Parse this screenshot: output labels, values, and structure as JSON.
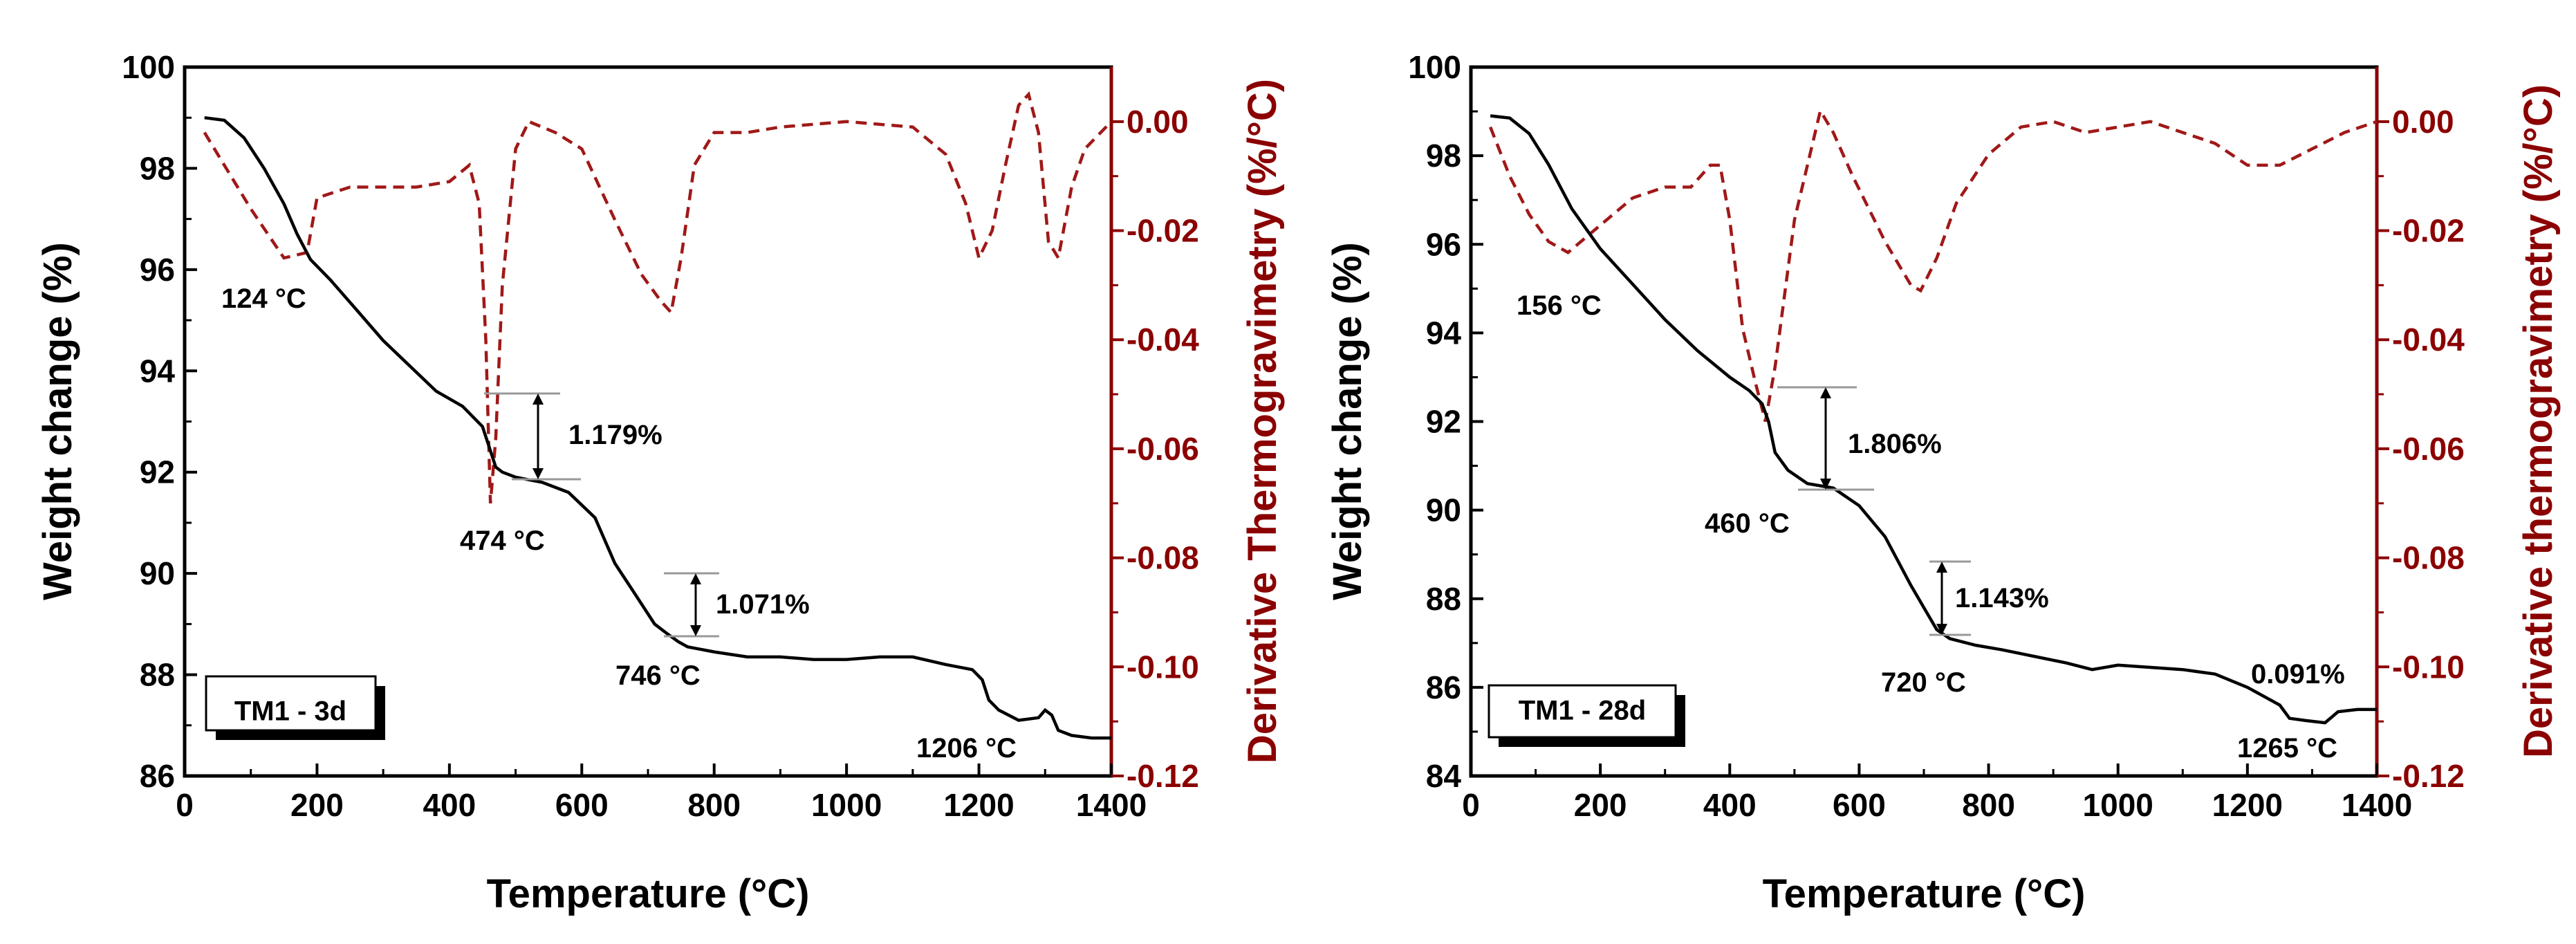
{
  "chart_data": [
    {
      "type": "line",
      "label": "TM1 - 3d",
      "xlabel": "Temperature (°C)",
      "ylabel": "Weight change (%)",
      "y2label": "Derivative Thermogravimetry (%/°C)",
      "xlim": [
        0,
        1400
      ],
      "ylim": [
        86,
        100
      ],
      "y2lim": [
        -0.12,
        0.01
      ],
      "xticks": [
        "0",
        "200",
        "400",
        "600",
        "800",
        "1000",
        "1200",
        "1400"
      ],
      "yticks": [
        "86",
        "88",
        "90",
        "92",
        "94",
        "96",
        "98",
        "100"
      ],
      "y2ticks": [
        "0.00",
        "-0.02",
        "-0.04",
        "-0.06",
        "-0.08",
        "-0.10",
        "-0.12"
      ],
      "colors": {
        "weight": "#000000",
        "dtg": "#a01818",
        "right_axis": "#8b0000"
      },
      "series": [
        {
          "name": "Weight change",
          "axis": "left",
          "x": [
            30,
            60,
            90,
            120,
            150,
            170,
            190,
            220,
            260,
            300,
            340,
            380,
            420,
            450,
            460,
            470,
            480,
            500,
            540,
            580,
            620,
            650,
            680,
            710,
            730,
            746,
            760,
            800,
            850,
            900,
            950,
            1000,
            1050,
            1100,
            1150,
            1190,
            1205,
            1215,
            1230,
            1260,
            1290,
            1300,
            1310,
            1320,
            1340,
            1370,
            1400
          ],
          "y": [
            99.0,
            98.95,
            98.6,
            98.0,
            97.3,
            96.7,
            96.2,
            95.8,
            95.2,
            94.6,
            94.1,
            93.6,
            93.3,
            92.9,
            92.5,
            92.1,
            92.0,
            91.9,
            91.8,
            91.6,
            91.1,
            90.2,
            89.6,
            89.0,
            88.8,
            88.65,
            88.55,
            88.45,
            88.35,
            88.35,
            88.3,
            88.3,
            88.35,
            88.35,
            88.2,
            88.1,
            87.9,
            87.5,
            87.3,
            87.1,
            87.15,
            87.3,
            87.2,
            86.9,
            86.8,
            86.75,
            86.75
          ]
        },
        {
          "name": "DTG",
          "axis": "right",
          "x": [
            30,
            60,
            100,
            150,
            185,
            200,
            250,
            300,
            350,
            400,
            430,
            445,
            455,
            462,
            470,
            480,
            500,
            520,
            560,
            600,
            650,
            690,
            720,
            735,
            750,
            770,
            800,
            850,
            900,
            1000,
            1100,
            1150,
            1180,
            1200,
            1220,
            1240,
            1260,
            1275,
            1290,
            1305,
            1320,
            1340,
            1360,
            1400
          ],
          "y": [
            -0.002,
            -0.008,
            -0.016,
            -0.025,
            -0.024,
            -0.014,
            -0.012,
            -0.012,
            -0.012,
            -0.011,
            -0.008,
            -0.015,
            -0.04,
            -0.07,
            -0.058,
            -0.03,
            -0.005,
            0.0,
            -0.002,
            -0.005,
            -0.018,
            -0.028,
            -0.033,
            -0.035,
            -0.025,
            -0.008,
            -0.002,
            -0.002,
            -0.001,
            0.0,
            -0.001,
            -0.006,
            -0.015,
            -0.025,
            -0.02,
            -0.008,
            0.003,
            0.005,
            -0.002,
            -0.022,
            -0.025,
            -0.012,
            -0.005,
            0.0
          ]
        }
      ],
      "peaks": [
        "124 °C",
        "474 °C",
        "746 °C",
        "1206 °C"
      ],
      "mass_losses": [
        "1.179%",
        "1.071%"
      ]
    },
    {
      "type": "line",
      "label": "TM1 - 28d",
      "xlabel": "Temperature (°C)",
      "ylabel": "Weight change (%)",
      "y2label": "Derivative thermogravimetry (%/°C)",
      "xlim": [
        0,
        1400
      ],
      "ylim": [
        84,
        100
      ],
      "y2lim": [
        -0.12,
        0.01
      ],
      "xticks": [
        "0",
        "200",
        "400",
        "600",
        "800",
        "1000",
        "1200",
        "1400"
      ],
      "yticks": [
        "84",
        "86",
        "88",
        "90",
        "92",
        "94",
        "96",
        "98",
        "100"
      ],
      "y2ticks": [
        "0.00",
        "-0.02",
        "-0.04",
        "-0.06",
        "-0.08",
        "-0.10",
        "-0.12"
      ],
      "colors": {
        "weight": "#000000",
        "dtg": "#a01818",
        "right_axis": "#8b0000"
      },
      "series": [
        {
          "name": "Weight change",
          "axis": "left",
          "x": [
            30,
            60,
            90,
            120,
            156,
            200,
            250,
            300,
            350,
            400,
            430,
            450,
            460,
            470,
            490,
            520,
            560,
            600,
            640,
            680,
            700,
            720,
            740,
            780,
            820,
            870,
            920,
            960,
            1000,
            1050,
            1100,
            1150,
            1200,
            1250,
            1265,
            1290,
            1320,
            1340,
            1370,
            1400
          ],
          "y": [
            98.9,
            98.85,
            98.5,
            97.8,
            96.8,
            95.9,
            95.1,
            94.3,
            93.6,
            93.0,
            92.7,
            92.4,
            92.0,
            91.3,
            90.9,
            90.6,
            90.5,
            90.1,
            89.4,
            88.3,
            87.8,
            87.3,
            87.1,
            86.95,
            86.85,
            86.7,
            86.55,
            86.4,
            86.5,
            86.45,
            86.4,
            86.3,
            86.0,
            85.6,
            85.3,
            85.25,
            85.2,
            85.45,
            85.5,
            85.5
          ]
        },
        {
          "name": "DTG",
          "axis": "right",
          "x": [
            30,
            60,
            90,
            120,
            150,
            190,
            250,
            300,
            340,
            370,
            385,
            400,
            420,
            440,
            455,
            470,
            500,
            540,
            560,
            590,
            640,
            680,
            695,
            720,
            750,
            800,
            850,
            900,
            950,
            1000,
            1050,
            1100,
            1150,
            1200,
            1250,
            1300,
            1350,
            1400
          ],
          "y": [
            -0.001,
            -0.01,
            -0.017,
            -0.022,
            -0.024,
            -0.02,
            -0.014,
            -0.012,
            -0.012,
            -0.008,
            -0.008,
            -0.018,
            -0.038,
            -0.048,
            -0.055,
            -0.045,
            -0.018,
            0.002,
            -0.002,
            -0.01,
            -0.022,
            -0.03,
            -0.031,
            -0.025,
            -0.015,
            -0.006,
            -0.001,
            0.0,
            -0.002,
            -0.001,
            0.0,
            -0.002,
            -0.004,
            -0.008,
            -0.008,
            -0.005,
            -0.002,
            0.0
          ]
        }
      ],
      "peaks": [
        "156 °C",
        "460 °C",
        "720 °C",
        "1265 °C"
      ],
      "mass_losses": [
        "1.806%",
        "1.143%",
        "0.091%"
      ]
    }
  ]
}
